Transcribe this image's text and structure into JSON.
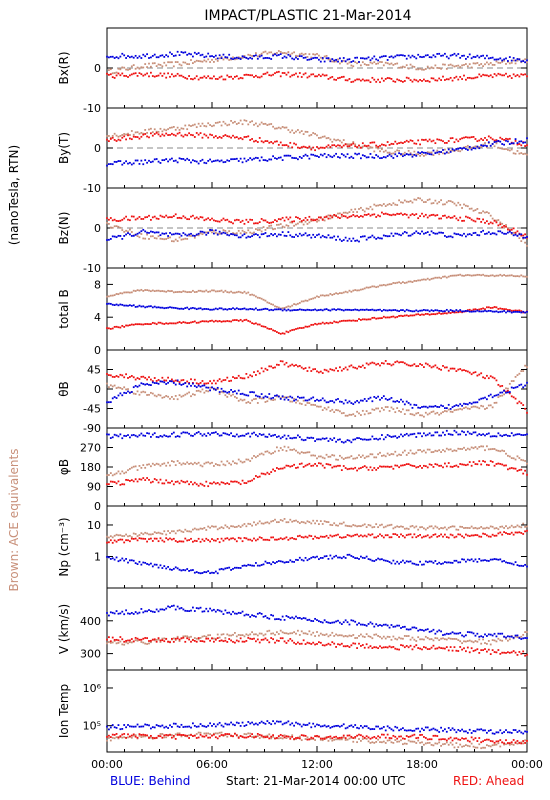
{
  "title": "IMPACT/PLASTIC   21-Mar-2014",
  "side_label_units": "(nanoTesla, RTN)",
  "side_label_brown": "Brown: ACE equivalents",
  "footer": {
    "blue": "BLUE: Behind",
    "start": "Start: 21-Mar-2014 00:00 UTC",
    "red": "RED: Ahead"
  },
  "colors": {
    "blue": "#0000dd",
    "red": "#ee1111",
    "brown": "#c8907a",
    "dash": "#888888"
  },
  "chart_data": [
    {
      "type": "scatter",
      "ylabel": "Bx(R)",
      "ylim": [
        -10,
        10
      ],
      "yticks": [
        "0",
        "-10"
      ],
      "ytick_values": [
        0,
        -10
      ],
      "zero_line": true,
      "x": [
        0,
        2,
        4,
        6,
        8,
        10,
        12,
        14,
        16,
        18,
        20,
        22,
        24
      ],
      "series": [
        {
          "color": "blue",
          "values": [
            3,
            3,
            3.5,
            3,
            2.5,
            3,
            2,
            2,
            2.5,
            3,
            3,
            2.5,
            2
          ]
        },
        {
          "color": "red",
          "values": [
            -2,
            -1.5,
            -2,
            -2.5,
            -2,
            -1.5,
            -2,
            -3,
            -3,
            -3,
            -2.5,
            -2,
            -2
          ]
        },
        {
          "color": "brown",
          "values": [
            -1,
            0.5,
            1,
            2,
            3,
            4,
            3,
            1,
            1,
            0,
            0.5,
            1,
            2
          ]
        }
      ]
    },
    {
      "type": "scatter",
      "ylabel": "By(T)",
      "ylim": [
        -10,
        10
      ],
      "yticks": [
        "0",
        "-10"
      ],
      "ytick_values": [
        0,
        -10
      ],
      "zero_line": true,
      "x": [
        0,
        2,
        4,
        6,
        8,
        10,
        12,
        14,
        16,
        18,
        20,
        22,
        24
      ],
      "series": [
        {
          "color": "blue",
          "values": [
            -4,
            -3.5,
            -3,
            -3.5,
            -3,
            -2.5,
            -2,
            -2,
            -2,
            -1.5,
            -0.5,
            1,
            2
          ]
        },
        {
          "color": "red",
          "values": [
            2,
            3,
            3.5,
            3,
            2.5,
            1,
            0,
            0.5,
            1,
            1.5,
            2,
            2.5,
            1
          ]
        },
        {
          "color": "brown",
          "values": [
            3,
            4,
            5,
            6,
            6.5,
            5,
            3,
            1,
            -1,
            -1.5,
            -0.5,
            1,
            -2
          ]
        }
      ]
    },
    {
      "type": "scatter",
      "ylabel": "Bz(N)",
      "ylim": [
        -10,
        10
      ],
      "yticks": [
        "0",
        "-10"
      ],
      "ytick_values": [
        0,
        -10
      ],
      "zero_line": true,
      "x": [
        0,
        2,
        4,
        6,
        8,
        10,
        12,
        14,
        16,
        18,
        20,
        22,
        24
      ],
      "series": [
        {
          "color": "blue",
          "values": [
            -3,
            -1,
            -2,
            -1,
            -2,
            -1.5,
            -2,
            -3,
            -2,
            -1,
            -2,
            -1,
            -2
          ]
        },
        {
          "color": "red",
          "values": [
            2,
            2.5,
            3,
            2,
            1.5,
            2,
            2.5,
            3,
            3.5,
            3,
            2.5,
            1.5,
            -2
          ]
        },
        {
          "color": "brown",
          "values": [
            1,
            -2,
            -3,
            -1,
            -1,
            0.5,
            2,
            4,
            6,
            7,
            6,
            3,
            -4
          ]
        }
      ]
    },
    {
      "type": "line",
      "ylabel": "total B",
      "ylim": [
        0,
        10
      ],
      "yticks": [
        "8",
        "4",
        "0"
      ],
      "ytick_values": [
        8,
        4,
        0
      ],
      "zero_line": false,
      "x": [
        0,
        2,
        4,
        6,
        8,
        10,
        12,
        14,
        16,
        18,
        20,
        22,
        24
      ],
      "series": [
        {
          "color": "blue",
          "values": [
            5.6,
            5.3,
            5.1,
            5.0,
            5.0,
            4.9,
            4.9,
            4.9,
            4.8,
            4.8,
            4.8,
            4.7,
            4.6
          ]
        },
        {
          "color": "red",
          "values": [
            2.6,
            3.2,
            3.3,
            3.5,
            3.6,
            2.0,
            3.2,
            3.6,
            4.0,
            4.3,
            4.6,
            5.2,
            4.6
          ]
        },
        {
          "color": "brown",
          "values": [
            6.6,
            7.3,
            7.1,
            7.2,
            7.0,
            5.0,
            6.5,
            7.2,
            8.0,
            8.5,
            9.1,
            9.1,
            9.0
          ]
        }
      ]
    },
    {
      "type": "scatter",
      "ylabel": "θB",
      "ylim": [
        -90,
        90
      ],
      "yticks": [
        "45",
        "0",
        "-45",
        "-90"
      ],
      "ytick_values": [
        45,
        0,
        -45,
        -90
      ],
      "zero_line": false,
      "x": [
        0,
        2,
        4,
        6,
        8,
        10,
        12,
        14,
        16,
        18,
        20,
        22,
        24
      ],
      "series": [
        {
          "color": "blue",
          "values": [
            -30,
            10,
            15,
            0,
            -10,
            -20,
            -25,
            -30,
            -20,
            -45,
            -40,
            -15,
            10
          ]
        },
        {
          "color": "red",
          "values": [
            35,
            25,
            20,
            15,
            30,
            60,
            40,
            50,
            60,
            55,
            45,
            25,
            -50
          ]
        },
        {
          "color": "brown",
          "values": [
            10,
            -10,
            -20,
            0,
            -30,
            -20,
            -40,
            -60,
            -45,
            -60,
            -50,
            -40,
            55
          ]
        }
      ]
    },
    {
      "type": "scatter",
      "ylabel": "φB",
      "ylim": [
        0,
        360
      ],
      "yticks": [
        "270",
        "180",
        "90",
        "0"
      ],
      "ytick_values": [
        270,
        180,
        90,
        0
      ],
      "zero_line": false,
      "x": [
        0,
        2,
        4,
        6,
        8,
        10,
        12,
        14,
        16,
        18,
        20,
        22,
        24
      ],
      "series": [
        {
          "color": "blue",
          "values": [
            320,
            325,
            330,
            335,
            330,
            320,
            310,
            300,
            320,
            330,
            340,
            330,
            330
          ]
        },
        {
          "color": "red",
          "values": [
            100,
            120,
            110,
            100,
            110,
            180,
            190,
            170,
            180,
            185,
            190,
            200,
            150
          ]
        },
        {
          "color": "brown",
          "values": [
            140,
            180,
            200,
            190,
            210,
            270,
            230,
            220,
            240,
            250,
            260,
            270,
            200
          ]
        }
      ]
    },
    {
      "type": "scatter",
      "ylabel": "Np (cm⁻³)",
      "ylim": [
        0.1,
        40
      ],
      "log": true,
      "yticks": [
        "10",
        "1"
      ],
      "ytick_values": [
        10,
        1
      ],
      "zero_line": false,
      "x": [
        0,
        2,
        4,
        6,
        8,
        10,
        12,
        14,
        16,
        18,
        20,
        22,
        24
      ],
      "series": [
        {
          "color": "blue",
          "values": [
            0.9,
            0.6,
            0.4,
            0.3,
            0.5,
            0.7,
            0.9,
            1.0,
            0.7,
            0.6,
            0.7,
            0.8,
            0.5
          ]
        },
        {
          "color": "red",
          "values": [
            3,
            3.4,
            3.3,
            3.2,
            3.5,
            3.8,
            4.2,
            4.5,
            4.6,
            4.4,
            4.5,
            4.8,
            6
          ]
        },
        {
          "color": "brown",
          "values": [
            4,
            5,
            6,
            8,
            10,
            14,
            12,
            10,
            9,
            8,
            8,
            8,
            10
          ]
        }
      ]
    },
    {
      "type": "scatter",
      "ylabel": "V (km/s)",
      "ylim": [
        250,
        500
      ],
      "yticks": [
        "400",
        "300"
      ],
      "ytick_values": [
        400,
        300
      ],
      "zero_line": false,
      "x": [
        0,
        2,
        4,
        6,
        8,
        10,
        12,
        14,
        16,
        18,
        20,
        22,
        24
      ],
      "series": [
        {
          "color": "blue",
          "values": [
            420,
            430,
            440,
            430,
            420,
            410,
            400,
            395,
            385,
            370,
            360,
            355,
            350
          ]
        },
        {
          "color": "red",
          "values": [
            345,
            340,
            342,
            340,
            341,
            340,
            330,
            325,
            320,
            318,
            315,
            305,
            300
          ]
        },
        {
          "color": "brown",
          "values": [
            330,
            335,
            345,
            350,
            360,
            365,
            360,
            355,
            350,
            345,
            340,
            335,
            360
          ]
        }
      ]
    },
    {
      "type": "scatter",
      "ylabel": "Ion Temp",
      "ylim": [
        20000,
        3000000
      ],
      "log": true,
      "yticks": [
        "10⁶",
        "10⁵"
      ],
      "ytick_values": [
        1000000,
        100000
      ],
      "zero_line": false,
      "x": [
        0,
        2,
        4,
        6,
        8,
        10,
        12,
        14,
        16,
        18,
        20,
        22,
        24
      ],
      "series": [
        {
          "color": "blue",
          "values": [
            90000,
            95000,
            100000,
            105000,
            110000,
            120000,
            100000,
            95000,
            85000,
            80000,
            75000,
            70000,
            65000
          ]
        },
        {
          "color": "red",
          "values": [
            55000,
            52000,
            50000,
            52000,
            55000,
            50000,
            48000,
            50000,
            52000,
            50000,
            45000,
            40000,
            35000
          ]
        },
        {
          "color": "brown",
          "values": [
            45000,
            50000,
            55000,
            60000,
            55000,
            50000,
            45000,
            42000,
            38000,
            35000,
            30000,
            28000,
            40000
          ]
        }
      ]
    }
  ],
  "xticks": [
    "00:00",
    "06:00",
    "12:00",
    "18:00",
    "00:00"
  ],
  "xtick_values": [
    0,
    6,
    12,
    18,
    24
  ]
}
